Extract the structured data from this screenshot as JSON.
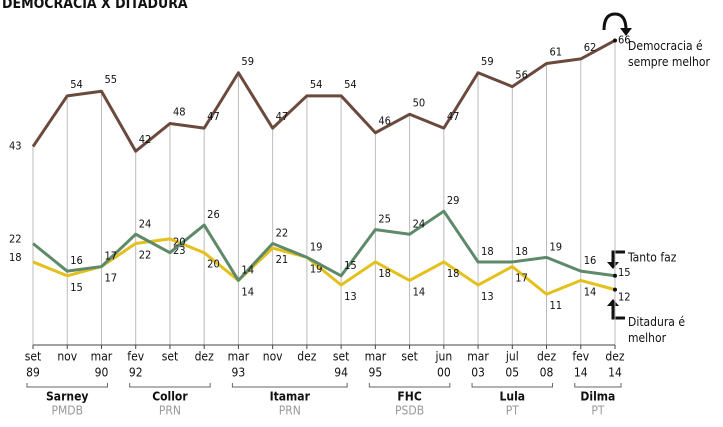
{
  "chart_data": {
    "type": "line",
    "title": "DEMOCRACIA X DITADURA",
    "categories": [
      "set",
      "nov",
      "mar",
      "fev",
      "set",
      "dez",
      "mar",
      "nov",
      "dez",
      "set",
      "mar",
      "set",
      "jun",
      "mar",
      "jul",
      "dez",
      "fev",
      "dez"
    ],
    "years": [
      "89",
      null,
      "90",
      "92",
      null,
      null,
      "93",
      null,
      null,
      "94",
      "95",
      null,
      "00",
      "03",
      "05",
      "08",
      "14",
      "14"
    ],
    "series": [
      {
        "name": "Democracia é sempre melhor",
        "color": "#6b4a3e",
        "values": [
          43,
          54,
          55,
          42,
          48,
          47,
          59,
          47,
          54,
          54,
          46,
          50,
          47,
          59,
          56,
          61,
          62,
          66
        ]
      },
      {
        "name": "Tanto faz",
        "color": "#5f8a6a",
        "values": [
          22,
          16,
          17,
          24,
          20,
          26,
          14,
          22,
          19,
          15,
          25,
          24,
          29,
          18,
          18,
          19,
          16,
          15
        ]
      },
      {
        "name": "Ditadura é melhor",
        "color": "#e3c01c",
        "values": [
          18,
          15,
          17,
          22,
          23,
          20,
          14,
          21,
          19,
          13,
          18,
          14,
          18,
          13,
          17,
          11,
          14,
          12
        ]
      }
    ],
    "periods": [
      {
        "name": "Sarney",
        "party": "PMDB"
      },
      {
        "name": "Collor",
        "party": "PRN"
      },
      {
        "name": "Itamar",
        "party": "PRN"
      },
      {
        "name": "FHC",
        "party": "PSDB"
      },
      {
        "name": "Lula",
        "party": "PT"
      },
      {
        "name": "Dilma",
        "party": "PT"
      }
    ],
    "ylim": [
      0,
      70
    ]
  }
}
